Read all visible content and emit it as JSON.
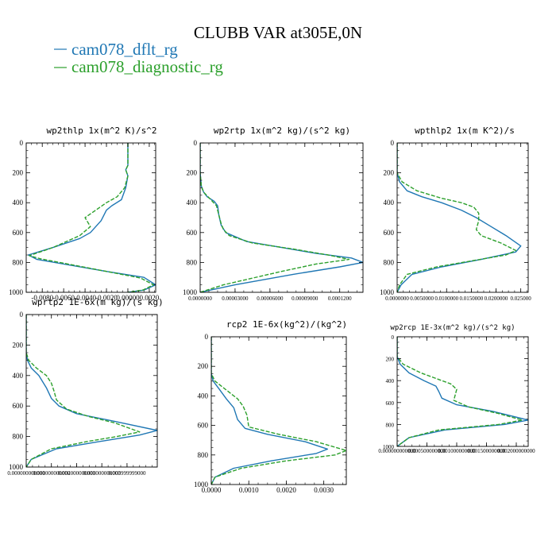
{
  "figure": {
    "title": "CLUBB VAR at305E,0N",
    "legend": [
      {
        "label": "cam078_dflt_rg",
        "color": "#1f77b4"
      },
      {
        "label": "cam078_diagnostic_rg",
        "color": "#2ca02c"
      }
    ]
  },
  "chart_data": [
    {
      "type": "line",
      "title": "wp2thlp   1x(m^2 K)/s^2",
      "xlim": [
        -0.0095,
        0.0026
      ],
      "ylim": [
        1000,
        0
      ],
      "xticks": [
        -0.008,
        -0.006,
        -0.004,
        -0.002,
        0.0,
        0.002
      ],
      "xtick_labels": [
        "-0.0080",
        "-0.0060",
        "-0.0040",
        "-0.0020",
        "0.00000",
        "0.0020"
      ],
      "yticks": [
        0,
        200,
        400,
        600,
        800,
        1000
      ],
      "ytick_labels": [
        "0",
        "200",
        "400",
        "600",
        "800",
        "1000"
      ],
      "series": [
        {
          "name": "cam078_dflt_rg",
          "color": "#1f77b4",
          "dash": "",
          "x": [
            0.0,
            0.0,
            -0.0002,
            0.0,
            -0.0002,
            -0.0006,
            -0.0015,
            -0.002,
            -0.0025,
            -0.0035,
            -0.0045,
            -0.007,
            -0.0093,
            -0.0085,
            -0.002,
            0.0015,
            0.0026,
            0.0015,
            0.0
          ],
          "y": [
            0,
            150,
            180,
            220,
            300,
            380,
            420,
            450,
            520,
            600,
            640,
            700,
            750,
            780,
            860,
            900,
            950,
            985,
            1000
          ]
        },
        {
          "name": "cam078_diagnostic_rg",
          "color": "#2ca02c",
          "dash": "5,2",
          "x": [
            0.0,
            0.0,
            -0.0002,
            0.0,
            -0.0003,
            -0.001,
            -0.002,
            -0.003,
            -0.004,
            -0.0035,
            -0.0045,
            -0.007,
            -0.0092,
            -0.0082,
            -0.002,
            0.0012,
            0.0024,
            0.0014,
            0.0
          ],
          "y": [
            0,
            150,
            180,
            220,
            300,
            360,
            400,
            450,
            500,
            560,
            620,
            700,
            755,
            775,
            860,
            905,
            950,
            985,
            1000
          ]
        }
      ]
    },
    {
      "type": "line",
      "title": "wp2rtp   1x(m^2 kg)/(s^2 kg)",
      "xlim": [
        0.0,
        0.00014
      ],
      "ylim": [
        1000,
        0
      ],
      "xticks": [
        0.0,
        3e-05,
        6e-05,
        9e-05,
        0.00012
      ],
      "xtick_labels": [
        "0.0000000",
        "0.00003000",
        "0.00006000",
        "0.00009000",
        "0.0001200"
      ],
      "yticks": [
        0,
        200,
        400,
        600,
        800,
        1000
      ],
      "ytick_labels": [
        "0",
        "200",
        "400",
        "600",
        "800",
        "1000"
      ],
      "series": [
        {
          "name": "cam078_dflt_rg",
          "color": "#1f77b4",
          "dash": "",
          "x": [
            0.0,
            0.0,
            1e-06,
            3e-06,
            6e-06,
            1.2e-05,
            1.5e-05,
            1.6e-05,
            1.8e-05,
            2.2e-05,
            4e-05,
            7e-05,
            0.0001,
            0.00013,
            0.00014,
            0.00012,
            8e-05,
            3e-05,
            0.0
          ],
          "y": [
            0,
            200,
            290,
            330,
            360,
            390,
            420,
            480,
            550,
            600,
            660,
            700,
            740,
            770,
            800,
            830,
            880,
            950,
            1000
          ]
        },
        {
          "name": "cam078_diagnostic_rg",
          "color": "#2ca02c",
          "dash": "5,2",
          "x": [
            0.0,
            0.0,
            1e-06,
            3e-06,
            8e-06,
            1.4e-05,
            1.6e-05,
            1.8e-05,
            2e-05,
            2.5e-05,
            4.5e-05,
            8e-05,
            0.00011,
            0.000128,
            0.0001,
            7e-05,
            2e-05,
            0.0
          ],
          "y": [
            0,
            200,
            290,
            330,
            370,
            420,
            480,
            540,
            580,
            620,
            670,
            710,
            750,
            780,
            810,
            860,
            950,
            1000
          ]
        }
      ]
    },
    {
      "type": "line",
      "title": "wpthlp2   1x(m K^2)/s",
      "xlim": [
        0.0,
        0.0265
      ],
      "ylim": [
        1000,
        0
      ],
      "xticks": [
        0.0,
        0.005,
        0.01,
        0.015,
        0.02,
        0.025
      ],
      "xtick_labels": [
        "0.0000000",
        "0.0050000",
        "0.0100000",
        "0.0150000",
        "0.0200000",
        "0.025000"
      ],
      "yticks": [
        0,
        200,
        400,
        600,
        800,
        1000
      ],
      "ytick_labels": [
        "0",
        "200",
        "400",
        "600",
        "800",
        "1000"
      ],
      "series": [
        {
          "name": "cam078_dflt_rg",
          "color": "#1f77b4",
          "dash": "",
          "x": [
            0.0,
            0.0,
            0.0005,
            0.002,
            0.005,
            0.009,
            0.013,
            0.016,
            0.019,
            0.022,
            0.025,
            0.024,
            0.017,
            0.009,
            0.003,
            0.0008,
            0.0
          ],
          "y": [
            0,
            200,
            260,
            320,
            360,
            400,
            450,
            500,
            560,
            620,
            690,
            730,
            780,
            830,
            880,
            950,
            1000
          ]
        },
        {
          "name": "cam078_diagnostic_rg",
          "color": "#2ca02c",
          "dash": "5,2",
          "x": [
            0.0,
            0.0,
            0.001,
            0.004,
            0.009,
            0.013,
            0.0155,
            0.0165,
            0.0165,
            0.016,
            0.017,
            0.021,
            0.024,
            0.022,
            0.015,
            0.008,
            0.002,
            0.0005,
            0.0
          ],
          "y": [
            0,
            200,
            260,
            320,
            370,
            400,
            430,
            470,
            520,
            580,
            620,
            670,
            720,
            750,
            790,
            830,
            880,
            950,
            1000
          ]
        }
      ]
    },
    {
      "type": "line",
      "title": "wprtp2   1E-6x(m kg)/(s kg)",
      "xlim": [
        0.0,
        0.0052
      ],
      "ylim": [
        1000,
        0
      ],
      "xticks": [
        0.0,
        0.001,
        0.002,
        0.003,
        0.004
      ],
      "xtick_labels": [
        "0.000000000000",
        "0.001000000000",
        "0.002000000000",
        "0.003000000000",
        "0.003999999000"
      ],
      "yticks": [
        0,
        200,
        400,
        600,
        800,
        1000
      ],
      "ytick_labels": [
        "0",
        "200",
        "400",
        "600",
        "800",
        "1000"
      ],
      "series": [
        {
          "name": "cam078_dflt_rg",
          "color": "#1f77b4",
          "dash": "",
          "x": [
            0.0,
            0.0,
            5e-05,
            0.0002,
            0.0005,
            0.0008,
            0.001,
            0.0013,
            0.002,
            0.0035,
            0.0052,
            0.0045,
            0.003,
            0.0012,
            0.0002,
            0.0
          ],
          "y": [
            0,
            250,
            300,
            350,
            400,
            480,
            550,
            600,
            650,
            700,
            760,
            790,
            830,
            880,
            950,
            1000
          ]
        },
        {
          "name": "cam078_diagnostic_rg",
          "color": "#2ca02c",
          "dash": "5,2",
          "x": [
            0.0,
            0.0,
            0.0001,
            0.0004,
            0.0008,
            0.001,
            0.0011,
            0.0012,
            0.0016,
            0.0025,
            0.0035,
            0.0045,
            0.0036,
            0.0025,
            0.001,
            0.0002,
            0.0
          ],
          "y": [
            0,
            250,
            300,
            350,
            400,
            450,
            500,
            560,
            620,
            670,
            710,
            770,
            800,
            830,
            880,
            950,
            1000
          ]
        }
      ]
    },
    {
      "type": "line",
      "title": "rcp2   1E-6x(kg^2)/(kg^2)",
      "xlim": [
        0.0,
        0.0036
      ],
      "ylim": [
        1000,
        0
      ],
      "xticks": [
        0.0,
        0.001,
        0.002,
        0.003
      ],
      "xtick_labels": [
        "0.0000",
        "0.0010",
        "0.0020",
        "0.0030"
      ],
      "yticks": [
        0,
        200,
        400,
        600,
        800,
        1000
      ],
      "ytick_labels": [
        "0",
        "200",
        "400",
        "600",
        "800",
        "1000"
      ],
      "series": [
        {
          "name": "cam078_dflt_rg",
          "color": "#1f77b4",
          "dash": "",
          "x": [
            0.0,
            0.0,
            5e-05,
            0.0002,
            0.0004,
            0.0006,
            0.0007,
            0.0009,
            0.0015,
            0.0025,
            0.0031,
            0.0028,
            0.0016,
            0.0006,
            0.0001,
            0.0
          ],
          "y": [
            0,
            250,
            300,
            350,
            420,
            480,
            560,
            620,
            660,
            710,
            760,
            790,
            840,
            890,
            950,
            1000
          ]
        },
        {
          "name": "cam078_diagnostic_rg",
          "color": "#2ca02c",
          "dash": "5,2",
          "x": [
            0.0,
            0.0,
            0.0001,
            0.0004,
            0.0007,
            0.00085,
            0.00095,
            0.001,
            0.0018,
            0.0028,
            0.0036,
            0.0033,
            0.002,
            0.0008,
            0.0001,
            0.0
          ],
          "y": [
            0,
            250,
            300,
            360,
            420,
            470,
            530,
            610,
            660,
            710,
            770,
            800,
            840,
            890,
            950,
            1000
          ]
        }
      ]
    },
    {
      "type": "line",
      "title": "wp2rcp   1E-3x(m^2 kg)/(s^2 kg)",
      "xlim": [
        0.0,
        0.0022
      ],
      "ylim": [
        1000,
        0
      ],
      "xticks": [
        0.0,
        0.0005,
        0.001,
        0.0015,
        0.002
      ],
      "xtick_labels": [
        "0.000000000000",
        "0.000500000000",
        "0.001000000000",
        "0.001500000000",
        "0.002000000000"
      ],
      "yticks": [
        0,
        200,
        400,
        600,
        800,
        1000
      ],
      "ytick_labels": [
        "0",
        "200",
        "400",
        "600",
        "800",
        "1000"
      ],
      "series": [
        {
          "name": "cam078_dflt_rg",
          "color": "#1f77b4",
          "dash": "",
          "x": [
            0.0,
            0.0,
            5e-05,
            0.0002,
            0.00045,
            0.00065,
            0.0007,
            0.00075,
            0.001,
            0.0016,
            0.0022,
            0.0018,
            0.0008,
            0.0002,
            0.0
          ],
          "y": [
            0,
            180,
            250,
            330,
            400,
            450,
            500,
            560,
            620,
            680,
            760,
            800,
            850,
            920,
            1000
          ]
        },
        {
          "name": "cam078_diagnostic_rg",
          "color": "#2ca02c",
          "dash": "5,2",
          "x": [
            0.0,
            0.0,
            0.0001,
            0.0004,
            0.0007,
            0.0009,
            0.001,
            0.00095,
            0.0012,
            0.0017,
            0.0021,
            0.0017,
            0.0007,
            0.0002,
            0.0
          ],
          "y": [
            0,
            180,
            250,
            330,
            390,
            430,
            480,
            580,
            640,
            700,
            760,
            800,
            850,
            920,
            1000
          ]
        }
      ]
    }
  ]
}
